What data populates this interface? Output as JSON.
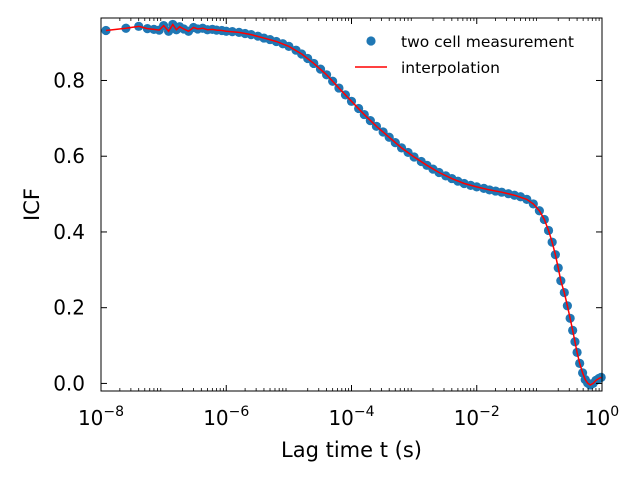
{
  "chart_data": {
    "type": "scatter",
    "title": "",
    "xlabel": "Lag time t (s)",
    "ylabel": "ICF",
    "xscale": "log",
    "xlim": [
      1e-08,
      1
    ],
    "ylim": [
      -0.02,
      0.965
    ],
    "xticks": [
      {
        "value": 1e-08,
        "label_base": "10",
        "label_exp": "−8"
      },
      {
        "value": 1e-06,
        "label_base": "10",
        "label_exp": "−6"
      },
      {
        "value": 0.0001,
        "label_base": "10",
        "label_exp": "−4"
      },
      {
        "value": 0.01,
        "label_base": "10",
        "label_exp": "−2"
      },
      {
        "value": 1,
        "label_base": "10",
        "label_exp": "0"
      }
    ],
    "yticks": [
      {
        "value": 0.0,
        "label": "0.0"
      },
      {
        "value": 0.2,
        "label": "0.2"
      },
      {
        "value": 0.4,
        "label": "0.4"
      },
      {
        "value": 0.6,
        "label": "0.6"
      },
      {
        "value": 0.8,
        "label": "0.8"
      }
    ],
    "legend_position": "top-right",
    "grid": false,
    "series": [
      {
        "name": "two cell measurement",
        "kind": "markers",
        "color": "#1f77b4",
        "points": [
          [
            1.2e-08,
            0.932
          ],
          [
            2.5e-08,
            0.938
          ],
          [
            4e-08,
            0.943
          ],
          [
            5.5e-08,
            0.937
          ],
          [
            7e-08,
            0.935
          ],
          [
            8.5e-08,
            0.933
          ],
          [
            1e-07,
            0.945
          ],
          [
            1.2e-07,
            0.93
          ],
          [
            1.4e-07,
            0.948
          ],
          [
            1.6e-07,
            0.934
          ],
          [
            1.8e-07,
            0.942
          ],
          [
            2.1e-07,
            0.936
          ],
          [
            2.5e-07,
            0.93
          ],
          [
            3e-07,
            0.94
          ],
          [
            3.5e-07,
            0.936
          ],
          [
            4.2e-07,
            0.938
          ],
          [
            5e-07,
            0.934
          ],
          [
            6e-07,
            0.935
          ],
          [
            7e-07,
            0.933
          ],
          [
            8.5e-07,
            0.932
          ],
          [
            1e-06,
            0.93
          ],
          [
            1.25e-06,
            0.929
          ],
          [
            1.6e-06,
            0.927
          ],
          [
            2e-06,
            0.924
          ],
          [
            2.5e-06,
            0.921
          ],
          [
            3.2e-06,
            0.917
          ],
          [
            4e-06,
            0.912
          ],
          [
            5e-06,
            0.908
          ],
          [
            6.3e-06,
            0.903
          ],
          [
            8e-06,
            0.897
          ],
          [
            1e-05,
            0.89
          ],
          [
            1.3e-05,
            0.88
          ],
          [
            1.6e-05,
            0.87
          ],
          [
            2e-05,
            0.858
          ],
          [
            2.5e-05,
            0.845
          ],
          [
            3.2e-05,
            0.83
          ],
          [
            4e-05,
            0.815
          ],
          [
            5e-05,
            0.798
          ],
          [
            6.3e-05,
            0.78
          ],
          [
            8e-05,
            0.762
          ],
          [
            0.0001,
            0.745
          ],
          [
            0.00013,
            0.726
          ],
          [
            0.00016,
            0.71
          ],
          [
            0.0002,
            0.694
          ],
          [
            0.00025,
            0.679
          ],
          [
            0.00032,
            0.664
          ],
          [
            0.0004,
            0.65
          ],
          [
            0.0005,
            0.636
          ],
          [
            0.00063,
            0.622
          ],
          [
            0.0008,
            0.61
          ],
          [
            0.001,
            0.598
          ],
          [
            0.0013,
            0.586
          ],
          [
            0.0016,
            0.576
          ],
          [
            0.002,
            0.566
          ],
          [
            0.0025,
            0.557
          ],
          [
            0.0032,
            0.548
          ],
          [
            0.004,
            0.541
          ],
          [
            0.005,
            0.534
          ],
          [
            0.0063,
            0.528
          ],
          [
            0.008,
            0.523
          ],
          [
            0.01,
            0.519
          ],
          [
            0.013,
            0.515
          ],
          [
            0.016,
            0.511
          ],
          [
            0.02,
            0.508
          ],
          [
            0.025,
            0.505
          ],
          [
            0.032,
            0.501
          ],
          [
            0.04,
            0.497
          ],
          [
            0.05,
            0.493
          ],
          [
            0.063,
            0.486
          ],
          [
            0.08,
            0.474
          ],
          [
            0.1,
            0.456
          ],
          [
            0.12,
            0.433
          ],
          [
            0.14,
            0.404
          ],
          [
            0.16,
            0.373
          ],
          [
            0.18,
            0.34
          ],
          [
            0.2,
            0.305
          ],
          [
            0.22,
            0.271
          ],
          [
            0.25,
            0.24
          ],
          [
            0.28,
            0.205
          ],
          [
            0.31,
            0.172
          ],
          [
            0.34,
            0.14
          ],
          [
            0.37,
            0.11
          ],
          [
            0.4,
            0.082
          ],
          [
            0.44,
            0.053
          ],
          [
            0.49,
            0.028
          ],
          [
            0.54,
            0.01
          ],
          [
            0.59,
            0.001
          ],
          [
            0.65,
            -0.004
          ],
          [
            0.72,
            0.0
          ],
          [
            0.8,
            0.008
          ],
          [
            0.89,
            0.013
          ],
          [
            0.97,
            0.016
          ]
        ]
      },
      {
        "name": "interpolation",
        "kind": "line",
        "color": "#ff0000",
        "points": [
          [
            1.2e-08,
            0.932
          ],
          [
            2.5e-08,
            0.938
          ],
          [
            4e-08,
            0.943
          ],
          [
            5.5e-08,
            0.937
          ],
          [
            7e-08,
            0.935
          ],
          [
            8.5e-08,
            0.933
          ],
          [
            1e-07,
            0.945
          ],
          [
            1.2e-07,
            0.93
          ],
          [
            1.4e-07,
            0.948
          ],
          [
            1.6e-07,
            0.934
          ],
          [
            1.8e-07,
            0.942
          ],
          [
            2.1e-07,
            0.936
          ],
          [
            2.5e-07,
            0.93
          ],
          [
            3e-07,
            0.94
          ],
          [
            3.5e-07,
            0.936
          ],
          [
            4.2e-07,
            0.938
          ],
          [
            5e-07,
            0.934
          ],
          [
            6e-07,
            0.935
          ],
          [
            7e-07,
            0.933
          ],
          [
            8.5e-07,
            0.932
          ],
          [
            1e-06,
            0.93
          ],
          [
            1.6e-06,
            0.927
          ],
          [
            2.5e-06,
            0.921
          ],
          [
            4e-06,
            0.912
          ],
          [
            6.3e-06,
            0.903
          ],
          [
            1e-05,
            0.89
          ],
          [
            1.6e-05,
            0.87
          ],
          [
            2.5e-05,
            0.845
          ],
          [
            4e-05,
            0.815
          ],
          [
            6.3e-05,
            0.78
          ],
          [
            0.0001,
            0.745
          ],
          [
            0.00016,
            0.71
          ],
          [
            0.00025,
            0.679
          ],
          [
            0.0004,
            0.65
          ],
          [
            0.00063,
            0.622
          ],
          [
            0.001,
            0.598
          ],
          [
            0.0016,
            0.576
          ],
          [
            0.0025,
            0.557
          ],
          [
            0.004,
            0.541
          ],
          [
            0.0063,
            0.528
          ],
          [
            0.01,
            0.519
          ],
          [
            0.016,
            0.511
          ],
          [
            0.025,
            0.505
          ],
          [
            0.04,
            0.497
          ],
          [
            0.063,
            0.486
          ],
          [
            0.08,
            0.474
          ],
          [
            0.1,
            0.456
          ],
          [
            0.12,
            0.433
          ],
          [
            0.14,
            0.404
          ],
          [
            0.16,
            0.373
          ],
          [
            0.18,
            0.34
          ],
          [
            0.2,
            0.305
          ],
          [
            0.22,
            0.271
          ],
          [
            0.25,
            0.24
          ],
          [
            0.28,
            0.205
          ],
          [
            0.31,
            0.172
          ],
          [
            0.34,
            0.14
          ],
          [
            0.37,
            0.11
          ],
          [
            0.4,
            0.082
          ],
          [
            0.44,
            0.053
          ],
          [
            0.49,
            0.028
          ],
          [
            0.54,
            0.01
          ],
          [
            0.59,
            0.001
          ],
          [
            0.65,
            -0.004
          ],
          [
            0.72,
            0.0
          ],
          [
            0.8,
            0.008
          ],
          [
            0.89,
            0.013
          ],
          [
            0.97,
            0.016
          ]
        ]
      }
    ]
  }
}
